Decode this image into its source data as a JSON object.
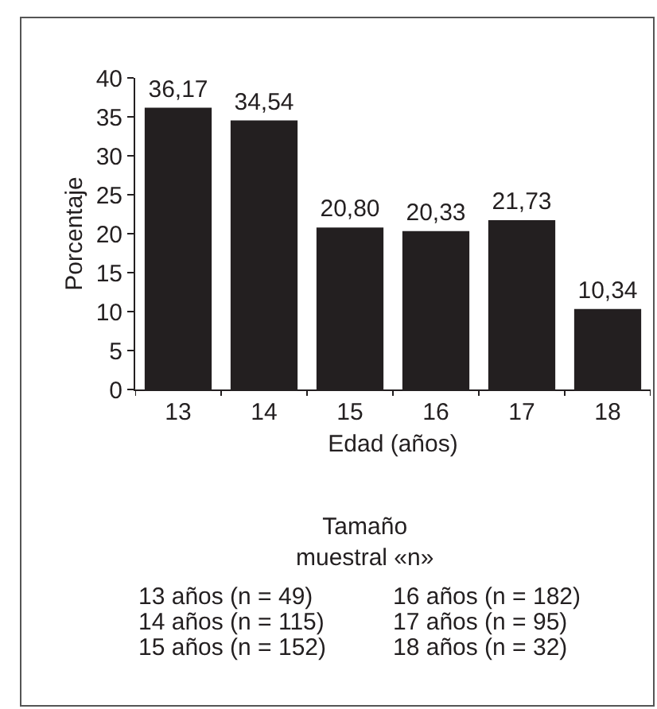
{
  "chart_data": {
    "type": "bar",
    "xlabel": "Edad (años)",
    "ylabel": "Porcentaje",
    "categories": [
      "13",
      "14",
      "15",
      "16",
      "17",
      "18"
    ],
    "values": [
      36.17,
      34.54,
      20.8,
      20.33,
      21.73,
      10.34
    ],
    "value_labels": [
      "36,17",
      "34,54",
      "20,80",
      "20,33",
      "21,73",
      "10,34"
    ],
    "color": "#231f20",
    "ylim": [
      0,
      40
    ],
    "yticks": [
      0,
      5,
      10,
      15,
      20,
      25,
      30,
      35,
      40
    ],
    "annotations": [
      "Tamaño\nmuestral «n»",
      "13 años (n = 49)",
      "14 años (n = 115)",
      "15 años (n = 152)",
      "16 años (n = 182)",
      "17 años (n = 95)",
      "18 años (n = 32)"
    ]
  }
}
